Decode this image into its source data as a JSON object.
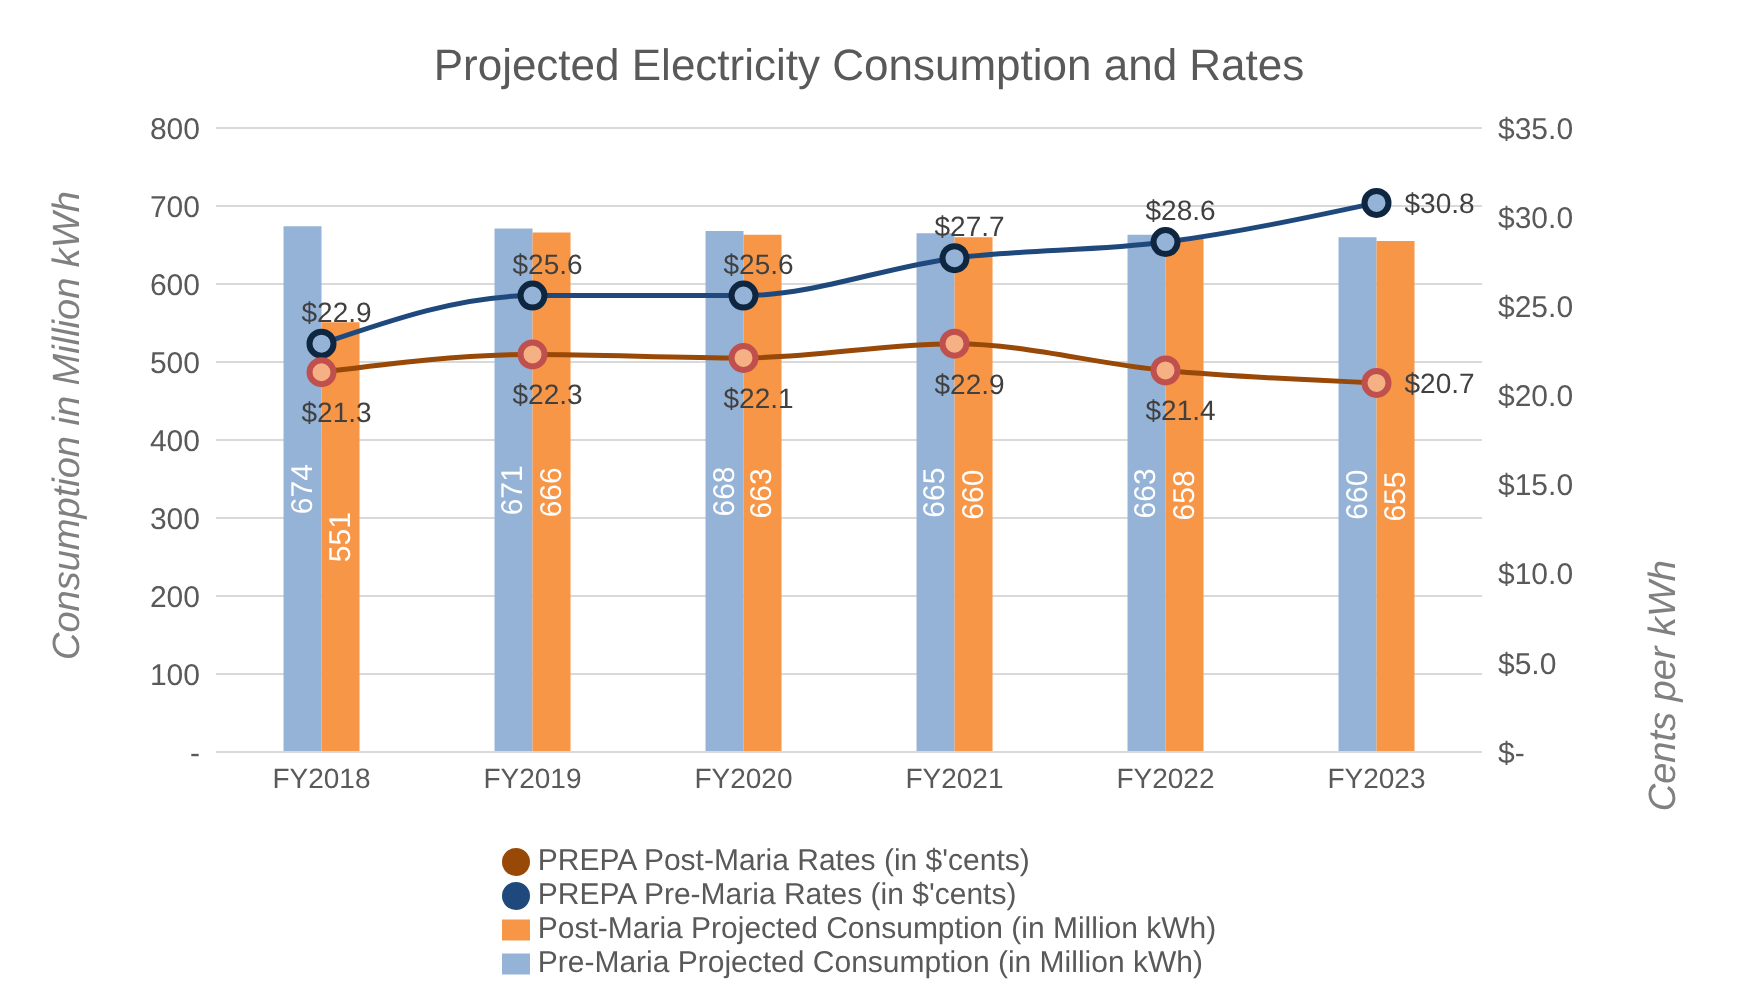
{
  "chart_data": {
    "type": "bar",
    "title": "Projected Electricity Consumption and Rates",
    "ylabel": "Consumption in Million kWh",
    "y2label": "Cents per kWh",
    "categories": [
      "FY2018",
      "FY2019",
      "FY2020",
      "FY2021",
      "FY2022",
      "FY2023"
    ],
    "series": [
      {
        "name": "Pre-Maria Projected Consumption (in Million kWh)",
        "color": "#95b3d7",
        "values": [
          674,
          671,
          668,
          665,
          663,
          660
        ],
        "value_labels": [
          "674",
          "671",
          "668",
          "665",
          "663",
          "660"
        ]
      },
      {
        "name": "Post-Maria Projected Consumption (in Million kWh)",
        "color": "#f79646",
        "values": [
          551,
          666,
          663,
          660,
          658,
          655
        ],
        "value_labels": [
          "551",
          "666",
          "663",
          "660",
          "658",
          "655"
        ]
      },
      {
        "name": "PREPA Pre-Maria Rates (in $'cents)",
        "type": "line",
        "axis": "y2",
        "color": "#1f497d",
        "values": [
          22.9,
          25.6,
          25.6,
          27.7,
          28.6,
          30.8
        ],
        "value_labels": [
          "$22.9",
          "$25.6",
          "$25.6",
          "$27.7",
          "$28.6",
          "$30.8"
        ]
      },
      {
        "name": "PREPA Post-Maria Rates (in $'cents)",
        "type": "line",
        "axis": "y2",
        "color": "#984807",
        "values": [
          21.3,
          22.3,
          22.1,
          22.9,
          21.4,
          20.7
        ],
        "value_labels": [
          "$21.3",
          "$22.3",
          "$22.1",
          "$22.9",
          "$21.4",
          "$20.7"
        ]
      }
    ],
    "ylim": [
      0,
      800
    ],
    "yticks": [
      {
        "value": 0,
        "label": "-"
      },
      100,
      200,
      300,
      400,
      500,
      600,
      700,
      800
    ],
    "y2lim": [
      0,
      35
    ],
    "y2ticks": [
      {
        "value": 0,
        "label": "$-"
      },
      {
        "value": 5,
        "label": "$5.0"
      },
      {
        "value": 10,
        "label": "$10.0"
      },
      {
        "value": 15,
        "label": "$15.0"
      },
      {
        "value": 20,
        "label": "$20.0"
      },
      {
        "value": 25,
        "label": "$25.0"
      },
      {
        "value": 30,
        "label": "$30.0"
      },
      {
        "value": 35,
        "label": "$35.0"
      }
    ],
    "grid": "y",
    "legend": "bottom",
    "marker": "circle",
    "line_style": "solid"
  }
}
